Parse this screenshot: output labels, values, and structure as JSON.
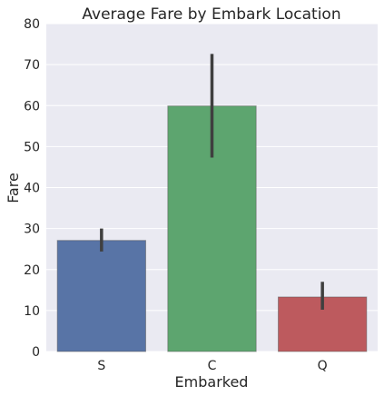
{
  "chart_data": {
    "type": "bar",
    "title": "Average Fare by Embark Location",
    "xlabel": "Embarked",
    "ylabel": "Fare",
    "categories": [
      "S",
      "C",
      "Q"
    ],
    "values": [
      27.1,
      59.9,
      13.3
    ],
    "error_bars": [
      [
        24.4,
        30.0
      ],
      [
        47.3,
        72.6
      ],
      [
        10.2,
        17.0
      ]
    ],
    "colors": [
      "#5874a6",
      "#5da56f",
      "#bd5a5e"
    ],
    "ylim": [
      0,
      80
    ],
    "yticks": [
      "0",
      "10",
      "20",
      "30",
      "40",
      "50",
      "60",
      "70",
      "80"
    ],
    "grid": true,
    "background": "#eaeaf2",
    "gridline_color": "#ffffff",
    "errorbar_color": "#3f3f3f"
  }
}
